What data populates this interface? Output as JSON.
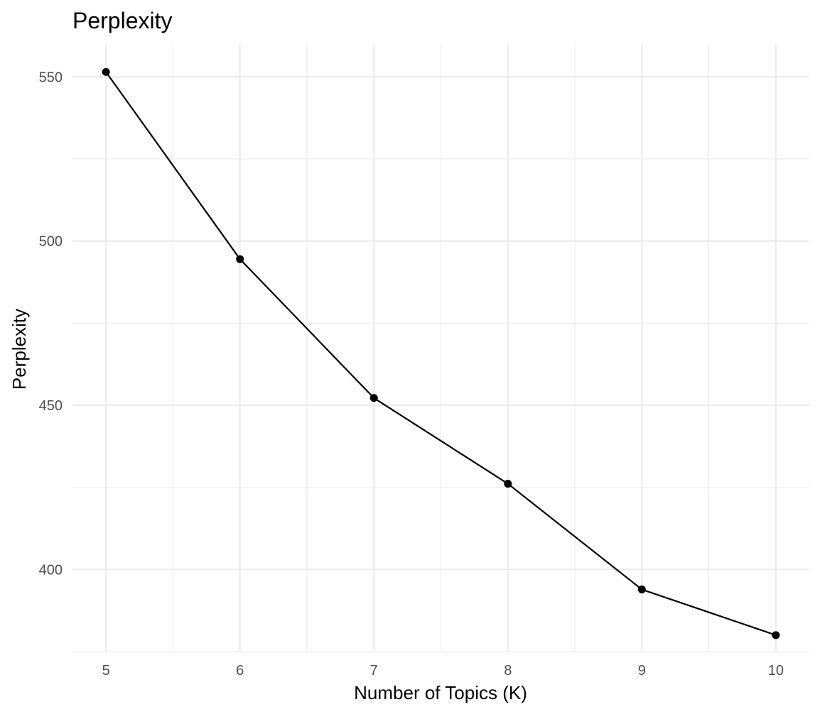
{
  "chart_data": {
    "type": "line",
    "title": "Perplexity",
    "xlabel": "Number of Topics (K)",
    "ylabel": "Perplexity",
    "x": [
      5,
      6,
      7,
      8,
      9,
      10
    ],
    "series": [
      {
        "values": [
          551.5,
          494.5,
          452.2,
          426.1,
          393.9,
          380.0
        ],
        "color": "#000000"
      }
    ],
    "x_ticks": [
      5,
      6,
      7,
      8,
      9,
      10
    ],
    "y_ticks": [
      400,
      450,
      500,
      550
    ],
    "xlim": [
      4.75,
      10.25
    ],
    "ylim": [
      375,
      560
    ],
    "grid": true,
    "legend": "none"
  }
}
